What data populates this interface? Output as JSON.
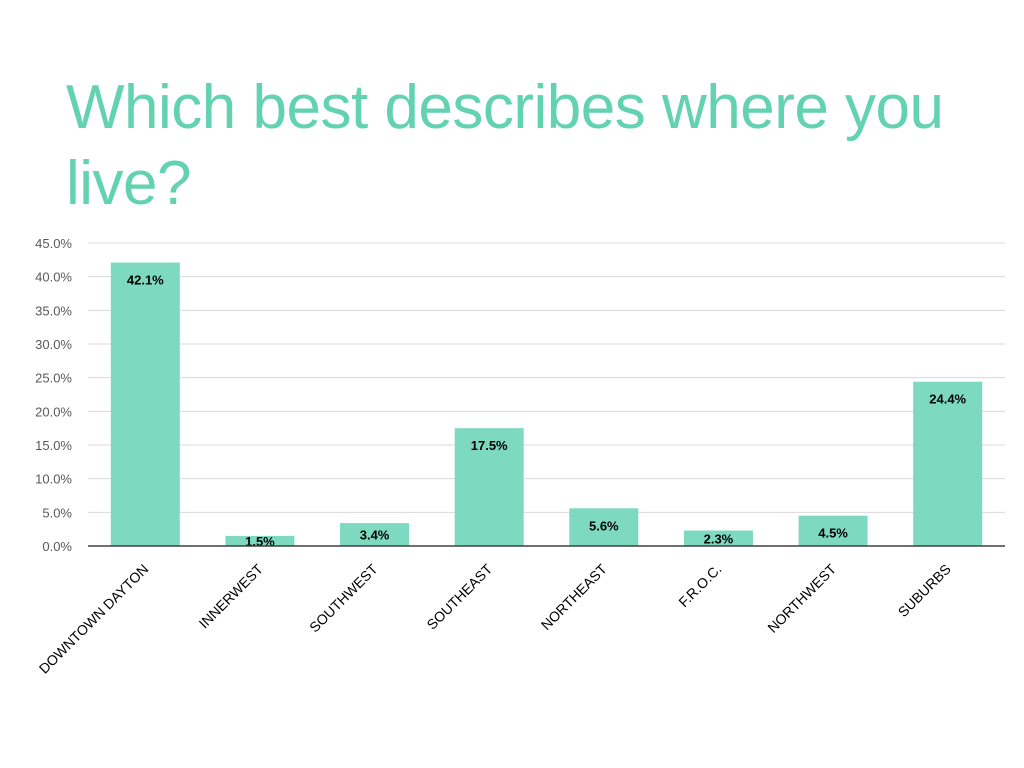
{
  "title": "Which best describes where you live?",
  "colors": {
    "title": "#62d2b0",
    "bar": "#7dd9bf",
    "grid": "#d9d9d9",
    "axis": "#404040"
  },
  "chart_data": {
    "type": "bar",
    "title": "Which best describes where you live?",
    "categories": [
      "DOWNTOWN DAYTON",
      "INNERWEST",
      "SOUTHWEST",
      "SOUTHEAST",
      "NORTHEAST",
      "F.R.O.C.",
      "NORTHWEST",
      "SUBURBS"
    ],
    "values": [
      42.1,
      1.5,
      3.4,
      17.5,
      5.6,
      2.3,
      4.5,
      24.4
    ],
    "data_labels": [
      "42.1%",
      "1.5%",
      "3.4%",
      "17.5%",
      "5.6%",
      "2.3%",
      "4.5%",
      "24.4%"
    ],
    "y_ticks": [
      "0.0%",
      "5.0%",
      "10.0%",
      "15.0%",
      "20.0%",
      "25.0%",
      "30.0%",
      "35.0%",
      "40.0%",
      "45.0%"
    ],
    "ylim": [
      0,
      45
    ],
    "xlabel": "",
    "ylabel": "",
    "grid": true,
    "legend": "none"
  }
}
